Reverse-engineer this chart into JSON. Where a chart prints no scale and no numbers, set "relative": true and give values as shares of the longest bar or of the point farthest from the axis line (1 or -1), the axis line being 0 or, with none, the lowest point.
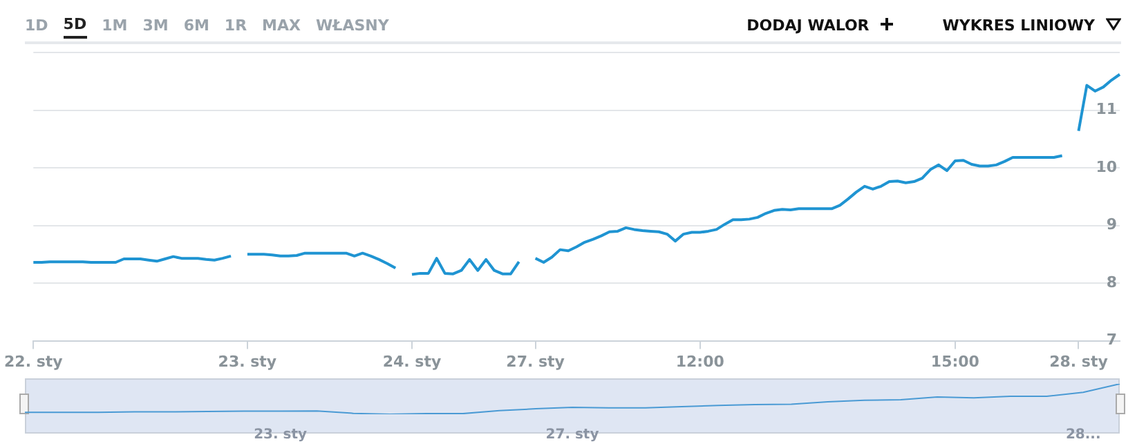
{
  "chart_data": [
    {
      "type": "line",
      "annotations": [
        "1D",
        "5D",
        "1M",
        "3M",
        "6M",
        "1R",
        "MAX",
        "WŁASNY",
        "DODAJ WALOR",
        "WYKRES LINIOWY"
      ],
      "categories": [
        "22. sty",
        null,
        null,
        null,
        null,
        null,
        null,
        null,
        null,
        null,
        null,
        null,
        null,
        null,
        null,
        null,
        null,
        null,
        null,
        null,
        null,
        null,
        null,
        null,
        null,
        null,
        "23. sty",
        null,
        null,
        null,
        null,
        null,
        null,
        null,
        null,
        null,
        null,
        null,
        null,
        null,
        null,
        null,
        null,
        null,
        null,
        null,
        "24. sty",
        null,
        null,
        null,
        null,
        null,
        null,
        null,
        null,
        null,
        null,
        null,
        null,
        null,
        null,
        "27. sty",
        null,
        null,
        null,
        null,
        null,
        null,
        null,
        null,
        null,
        null,
        null,
        null,
        null,
        null,
        null,
        null,
        null,
        null,
        null,
        "12:00",
        null,
        null,
        null,
        null,
        null,
        null,
        null,
        null,
        null,
        null,
        null,
        null,
        null,
        null,
        null,
        null,
        null,
        null,
        null,
        null,
        null,
        null,
        null,
        null,
        null,
        null,
        null,
        null,
        null,
        null,
        "15:00",
        null,
        null,
        null,
        null,
        null,
        null,
        null,
        null,
        null,
        null,
        null,
        null,
        null,
        null,
        "28. sty",
        null,
        null,
        null,
        null,
        null
      ],
      "values": [
        8.36,
        8.36,
        8.37,
        8.37,
        8.37,
        8.37,
        8.37,
        8.36,
        8.36,
        8.36,
        8.36,
        8.42,
        8.42,
        8.42,
        8.4,
        8.38,
        8.42,
        8.46,
        8.43,
        8.43,
        8.43,
        8.41,
        8.4,
        8.43,
        8.47,
        null,
        8.5,
        8.5,
        8.5,
        8.49,
        8.47,
        8.47,
        8.48,
        8.52,
        8.52,
        8.52,
        8.52,
        8.52,
        8.52,
        8.47,
        8.52,
        8.47,
        8.41,
        8.34,
        8.26,
        null,
        8.15,
        8.17,
        8.17,
        8.43,
        8.17,
        8.16,
        8.22,
        8.41,
        8.22,
        8.41,
        8.22,
        8.16,
        8.16,
        8.37,
        null,
        8.43,
        8.36,
        8.45,
        8.58,
        8.56,
        8.63,
        8.71,
        8.76,
        8.82,
        8.89,
        8.9,
        8.96,
        8.93,
        8.91,
        8.9,
        8.89,
        8.85,
        8.73,
        8.85,
        8.88,
        8.88,
        8.9,
        8.93,
        9.02,
        9.1,
        9.1,
        9.11,
        9.14,
        9.21,
        9.26,
        9.28,
        9.27,
        9.29,
        9.29,
        9.29,
        9.29,
        9.29,
        9.35,
        9.46,
        9.58,
        9.68,
        9.63,
        9.68,
        9.76,
        9.77,
        9.74,
        9.76,
        9.82,
        9.97,
        10.05,
        9.95,
        10.12,
        10.13,
        10.06,
        10.03,
        10.03,
        10.05,
        10.11,
        10.18,
        10.18,
        10.18,
        10.18,
        10.18,
        10.18,
        10.21,
        null,
        10.64,
        11.43,
        11.33,
        11.4,
        11.52,
        11.62
      ],
      "color": "#1f94d2",
      "ylim": [
        7,
        12
      ],
      "yticks": [
        7,
        8,
        9,
        10,
        11,
        {
          "value": 12,
          "label": null
        }
      ],
      "grid": "y"
    },
    {
      "type": "line",
      "relative": true,
      "tick_labels": "x",
      "color": "#4a9ad4",
      "categories": [
        null,
        null,
        null,
        null,
        null,
        null,
        null,
        "23. sty",
        null,
        null,
        null,
        null,
        null,
        null,
        null,
        "27. sty",
        null,
        null,
        null,
        null,
        null,
        null,
        null,
        null,
        null,
        null,
        null,
        null,
        null,
        "28...",
        null
      ],
      "values": [
        0.06,
        0.06,
        0.06,
        0.08,
        0.08,
        0.09,
        0.1,
        0.1,
        0.11,
        0.03,
        0,
        0.02,
        0.02,
        0.12,
        0.18,
        0.23,
        0.21,
        0.21,
        0.25,
        0.29,
        0.32,
        0.33,
        0.41,
        0.46,
        0.48,
        0.57,
        0.54,
        0.59,
        0.59,
        0.72,
        1
      ]
    }
  ]
}
